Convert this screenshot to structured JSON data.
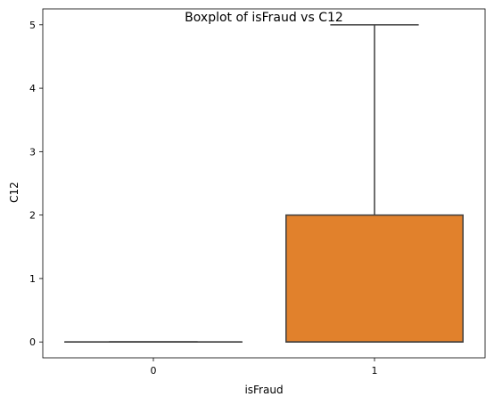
{
  "chart_data": {
    "type": "boxplot",
    "title": "Boxplot of isFraud vs C12",
    "xlabel": "isFraud",
    "ylabel": "C12",
    "categories": [
      "0",
      "1"
    ],
    "ylim": [
      -0.25,
      5.25
    ],
    "yticks": [
      0,
      1,
      2,
      3,
      4,
      5
    ],
    "grid": false,
    "boxes": [
      {
        "category": "0",
        "whisker_low": 0,
        "q1": 0,
        "median": 0,
        "q3": 0,
        "whisker_high": 0,
        "color": "#3274a1"
      },
      {
        "category": "1",
        "whisker_low": 0,
        "q1": 0,
        "median": 0,
        "q3": 2,
        "whisker_high": 5,
        "color": "#e1812c"
      }
    ]
  }
}
